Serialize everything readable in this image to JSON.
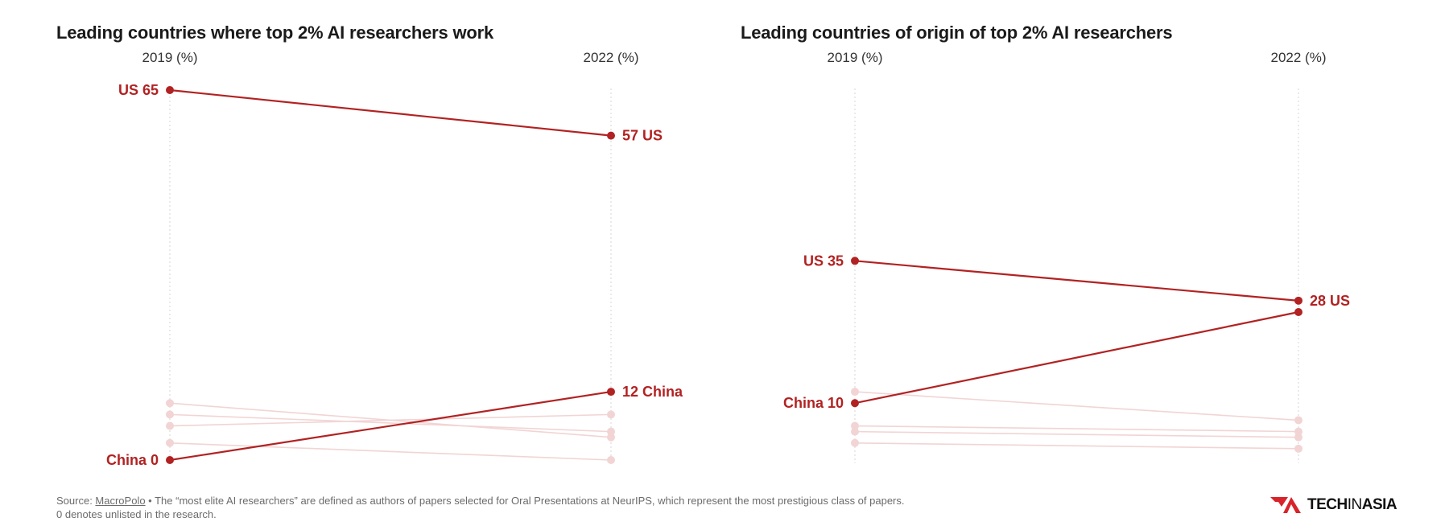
{
  "chart_data": [
    {
      "type": "slope",
      "title": "Leading countries where top 2% AI researchers work",
      "x": [
        "2019 (%)",
        "2022 (%)"
      ],
      "highlight_color": "#b22222",
      "muted_color": "#f2d4d4",
      "series": [
        {
          "name": "US",
          "values": [
            65,
            57
          ],
          "highlight": true,
          "label_start": "US 65",
          "label_end": "57 US"
        },
        {
          "name": "China",
          "values": [
            0,
            12
          ],
          "highlight": true,
          "label_start": "China 0",
          "label_end": "12 China"
        },
        {
          "values": [
            10,
            4
          ],
          "highlight": false
        },
        {
          "values": [
            8,
            5
          ],
          "highlight": false
        },
        {
          "values": [
            6,
            8
          ],
          "highlight": false
        },
        {
          "values": [
            3,
            0
          ],
          "highlight": false
        }
      ]
    },
    {
      "type": "slope",
      "title": "Leading countries of origin of top 2% AI researchers",
      "x": [
        "2019 (%)",
        "2022 (%)"
      ],
      "highlight_color": "#b22222",
      "muted_color": "#f2d4d4",
      "series": [
        {
          "name": "US",
          "values": [
            35,
            28
          ],
          "highlight": true,
          "label_start": "US 35",
          "label_end": "28 US"
        },
        {
          "name": "China",
          "values": [
            10,
            26
          ],
          "highlight": true,
          "label_start": "China 10",
          "label_end": ""
        },
        {
          "values": [
            12,
            7
          ],
          "highlight": false
        },
        {
          "values": [
            6,
            5
          ],
          "highlight": false
        },
        {
          "values": [
            5,
            4
          ],
          "highlight": false
        },
        {
          "values": [
            3,
            2
          ],
          "highlight": false
        }
      ]
    }
  ],
  "footer": {
    "source_prefix": "Source: ",
    "source_name": "MacroPolo",
    "note": " • The “most elite AI researchers” are defined as authors of papers selected for Oral Presentations at NeurIPS, which represent the most prestigious class of papers.",
    "note2": "0 denotes unlisted in the research."
  },
  "logo": {
    "bold": "TECH",
    "thin": "IN",
    "bold2": "ASIA",
    "color": "#d8232a"
  }
}
